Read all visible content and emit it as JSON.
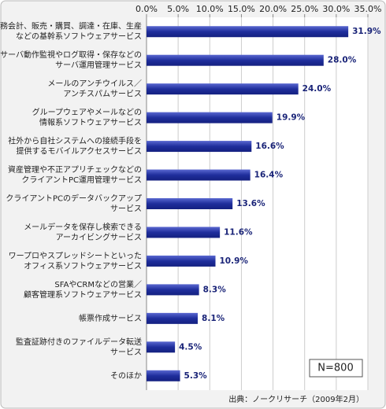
{
  "chart_data": {
    "type": "hbar",
    "categories": [
      [
        "財務会計、販売・購買、調達・在庫、生産",
        "などの基幹系ソフトウェアサービス"
      ],
      [
        "サーバ動作監視やログ取得・保存などの",
        "サーバ運用管理サービス"
      ],
      [
        "メールのアンチウイルス／",
        "アンチスパムサービス"
      ],
      [
        "グループウェアやメールなどの",
        "情報系ソフトウェアサービス"
      ],
      [
        "社外から自社システムへの接続手段を",
        "提供するモバイルアクセスサービス"
      ],
      [
        "資産管理や不正アプリチェックなどの",
        "クライアントPC運用管理サービス"
      ],
      [
        "クライアントPCのデータバックアップ",
        "サービス"
      ],
      [
        "メールデータを保存し検索できる",
        "アーカイビングサービス"
      ],
      [
        "ワープロやスプレッドシートといった",
        "オフィス系ソフトウェアサービス"
      ],
      [
        "SFAやCRMなどの営業／",
        "顧客管理系ソフトウェアサービス"
      ],
      [
        "帳票作成サービス"
      ],
      [
        "監査証跡付きのファイルデータ転送",
        "サービス"
      ],
      [
        "そのほか"
      ]
    ],
    "values": [
      31.9,
      28.0,
      24.0,
      19.9,
      16.6,
      16.4,
      13.6,
      11.6,
      10.9,
      8.3,
      8.1,
      4.5,
      5.3
    ],
    "value_labels": [
      "31.9%",
      "28.0%",
      "24.0%",
      "19.9%",
      "16.6%",
      "16.4%",
      "13.6%",
      "11.6%",
      "10.9%",
      "8.3%",
      "8.1%",
      "4.5%",
      "5.3%"
    ],
    "color": "#1f2e9c",
    "xlim": [
      0,
      35
    ],
    "xticks": [
      {
        "value": 0,
        "label": "0.0%"
      },
      {
        "value": 5,
        "label": "5.0%"
      },
      {
        "value": 10,
        "label": "10.0%"
      },
      {
        "value": 15,
        "label": "15.0%"
      },
      {
        "value": 20,
        "label": "20.0%"
      },
      {
        "value": 25,
        "label": "25.0%"
      },
      {
        "value": 30,
        "label": "30.0%"
      },
      {
        "value": 35,
        "label": "35.0%"
      }
    ],
    "grid": true,
    "note": "N=800",
    "source": "出典：ノークリサーチ（2009年2月）"
  }
}
